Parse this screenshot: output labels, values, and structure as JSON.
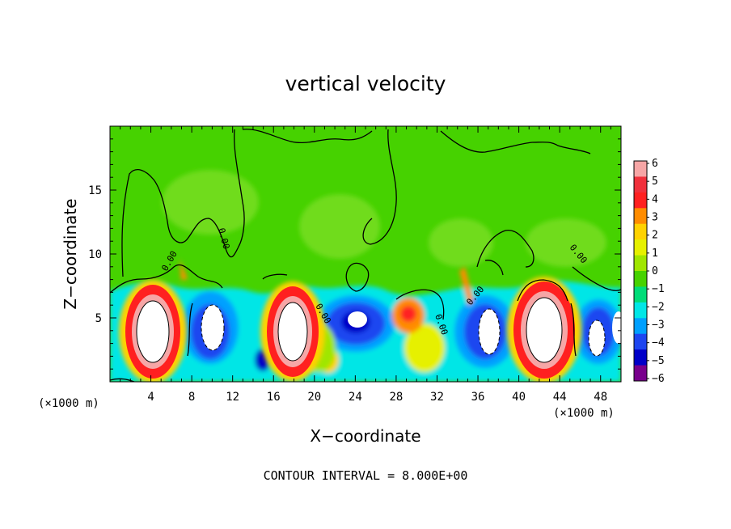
{
  "chart_data": {
    "type": "heatmap",
    "title": "vertical velocity",
    "xlabel": "X−coordinate",
    "ylabel": "Z−coordinate",
    "x_unit_label_left": "(×1000 m)",
    "x_unit_label_right": "(×1000 m)",
    "footer": "CONTOUR INTERVAL = 8.000E+00",
    "xlim": [
      0,
      50
    ],
    "ylim": [
      0,
      20
    ],
    "x_ticks": [
      "4",
      "8",
      "12",
      "16",
      "20",
      "24",
      "28",
      "32",
      "36",
      "40",
      "44",
      "48"
    ],
    "y_ticks": [
      "5",
      "10",
      "15"
    ],
    "contour_label": "0.00",
    "colorbar_labels": [
      "6",
      "5",
      "4",
      "3",
      "2",
      "1",
      "0",
      "−1",
      "−2",
      "−3",
      "−4",
      "−5",
      "−6"
    ],
    "colorbar_colors": [
      "#f6a6a6",
      "#f0303c",
      "#ff2020",
      "#ff8c00",
      "#ffd200",
      "#e6f000",
      "#a0e600",
      "#46d200",
      "#00dc78",
      "#00e6e6",
      "#00a0ff",
      "#1e46f0",
      "#0000c8",
      "#78008c"
    ],
    "features": [
      {
        "type": "updraft_core",
        "x": 4.2,
        "z": 4.2
      },
      {
        "type": "updraft_core",
        "x": 17.8,
        "z": 4.0
      },
      {
        "type": "updraft_core",
        "x": 42.0,
        "z": 4.0
      },
      {
        "type": "downdraft",
        "x": 10.0,
        "z": 4.3
      },
      {
        "type": "downdraft",
        "x": 24.0,
        "z": 5.0
      },
      {
        "type": "downdraft",
        "x": 37.0,
        "z": 4.0
      },
      {
        "type": "downdraft",
        "x": 47.0,
        "z": 4.0
      }
    ]
  }
}
